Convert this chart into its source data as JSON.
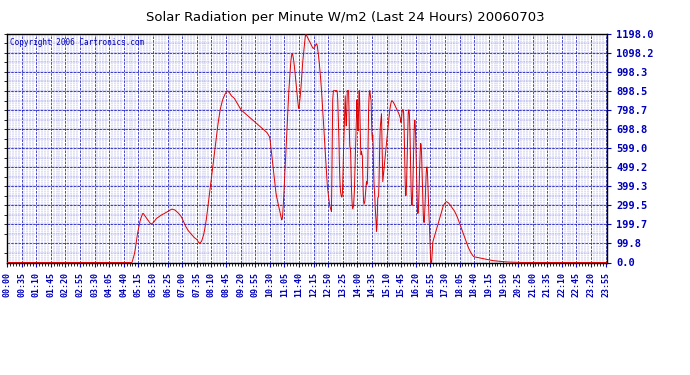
{
  "title": "Solar Radiation per Minute W/m2 (Last 24 Hours) 20060703",
  "copyright": "Copyright 2006 Cartronics.com",
  "background_color": "#FFFFFF",
  "plot_bg_color": "#FFFFFF",
  "line_color": "#DD0000",
  "grid_color": "#0000BB",
  "axis_label_color": "#0000BB",
  "title_color": "#000000",
  "border_color": "#000000",
  "ytick_labels": [
    "0.0",
    "99.8",
    "199.7",
    "299.5",
    "399.3",
    "499.2",
    "599.0",
    "698.8",
    "798.7",
    "898.5",
    "998.3",
    "1098.2",
    "1198.0"
  ],
  "ytick_values": [
    0.0,
    99.8,
    199.7,
    299.5,
    399.3,
    499.2,
    599.0,
    698.8,
    798.7,
    898.5,
    998.3,
    1098.2,
    1198.0
  ],
  "ymin": 0.0,
  "ymax": 1198.0,
  "xtick_labels": [
    "00:00",
    "00:35",
    "01:10",
    "01:45",
    "02:20",
    "02:55",
    "03:30",
    "04:05",
    "04:40",
    "05:15",
    "05:50",
    "06:25",
    "07:00",
    "07:35",
    "08:10",
    "08:45",
    "09:20",
    "09:55",
    "10:30",
    "11:05",
    "11:40",
    "12:15",
    "12:50",
    "13:25",
    "14:00",
    "14:35",
    "15:10",
    "15:45",
    "16:20",
    "16:55",
    "17:30",
    "18:05",
    "18:40",
    "19:15",
    "19:50",
    "20:25",
    "21:00",
    "21:35",
    "22:10",
    "22:45",
    "23:20",
    "23:55"
  ]
}
